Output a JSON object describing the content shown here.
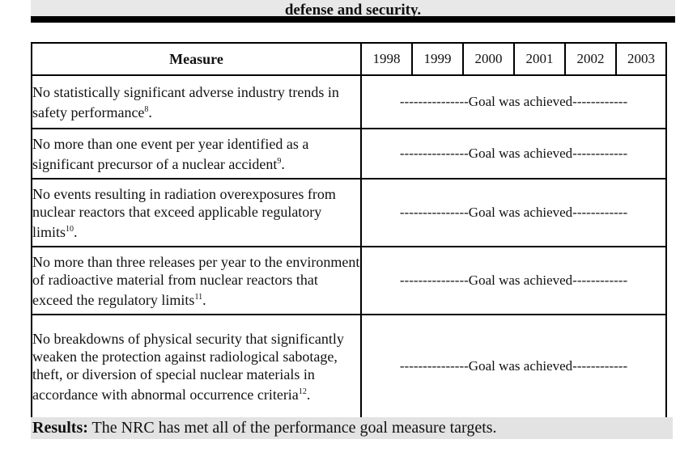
{
  "header": {
    "title": "defense and security."
  },
  "table": {
    "measure_header": "Measure",
    "years": [
      "1998",
      "1999",
      "2000",
      "2001",
      "2002",
      "2003"
    ],
    "goal_text": "---------------Goal was achieved------------",
    "rows": [
      {
        "text": "No statistically significant adverse industry trends in safety performance",
        "note": "8"
      },
      {
        "text": "No more than one event per year identified as a significant precursor of a nuclear accident",
        "note": "9"
      },
      {
        "text": "No events resulting in radiation overexposures from nuclear reactors that exceed applicable regulatory limits",
        "note": "10"
      },
      {
        "text": "No more than three releases per year to the environment of radioactive material from nuclear reactors that exceed the regulatory limits",
        "note": "11"
      },
      {
        "text": "No breakdowns of physical security that significantly weaken the protection against radiological sabotage, theft, or diversion of special nuclear materials in accordance with abnormal occurrence criteria",
        "note": "12"
      }
    ]
  },
  "results": {
    "label": "Results:",
    "text": " The NRC has met all of the performance goal measure targets."
  }
}
